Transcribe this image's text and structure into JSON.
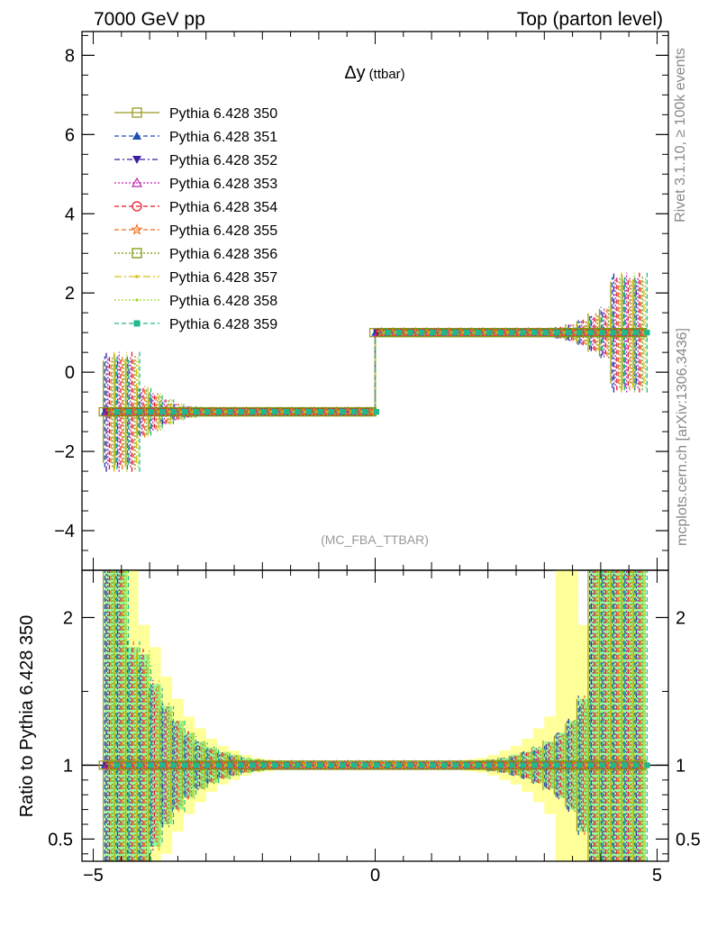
{
  "header": {
    "left": "7000 GeV pp",
    "right": "Top (parton level)"
  },
  "side_labels": {
    "rivet": "Rivet 3.1.10, ≥ 100k events",
    "mcplots": "mcplots.cern.ch [arXiv:1306.3436]"
  },
  "chart_data": [
    {
      "type": "line",
      "title": "Δy (ttbar)",
      "title_main": "Δy",
      "title_sub": "(ttbar)",
      "annotation": "(MC_FBA_TTBAR)",
      "xlim": [
        -5.2,
        5.2
      ],
      "ylim": [
        -5.0,
        8.6
      ],
      "yticks": [
        -4,
        -2,
        0,
        2,
        4,
        6,
        8
      ],
      "xticks": [
        -5,
        0,
        5
      ],
      "legend_position": "top-left",
      "bin_edges": [
        -4.8,
        -4.6,
        -4.4,
        -4.2,
        -4.0,
        -3.8,
        -3.6,
        -3.4,
        -3.2,
        -3.0,
        -2.8,
        -2.6,
        -2.4,
        -2.2,
        -2.0,
        -1.8,
        -1.6,
        -1.4,
        -1.2,
        -1.0,
        -0.8,
        -0.6,
        -0.4,
        -0.2,
        0.0,
        0.2,
        0.4,
        0.6,
        0.8,
        1.0,
        1.2,
        1.4,
        1.6,
        1.8,
        2.0,
        2.2,
        2.4,
        2.6,
        2.8,
        3.0,
        3.2,
        3.4,
        3.6,
        3.8,
        4.0,
        4.2,
        4.4,
        4.6,
        4.8
      ],
      "reference_values": {
        "negative_dy": -1.0,
        "positive_dy": 1.0
      },
      "error_half_widths": [
        1.4,
        1.4,
        1.4,
        0.6,
        0.45,
        0.3,
        0.2,
        0.14,
        0.1,
        0.07,
        0.05,
        0.04,
        0.03,
        0.02,
        0.02,
        0.01,
        0.01,
        0.01,
        0.01,
        0.01,
        0.01,
        0.01,
        0.01,
        0.01,
        0.01,
        0.01,
        0.01,
        0.01,
        0.01,
        0.01,
        0.01,
        0.01,
        0.01,
        0.02,
        0.02,
        0.03,
        0.04,
        0.05,
        0.07,
        0.1,
        0.14,
        0.2,
        0.3,
        0.45,
        0.6,
        1.4,
        1.4,
        1.4
      ],
      "series": [
        {
          "name": "Pythia 6.428 350",
          "color": "#9a9a22",
          "dash": "",
          "marker": "open-square"
        },
        {
          "name": "Pythia 6.428 351",
          "color": "#1e4fb0",
          "dash": "5,3",
          "marker": "filled-triangle-up"
        },
        {
          "name": "Pythia 6.428 352",
          "color": "#3b1fa0",
          "dash": "6,3,2,3",
          "marker": "filled-triangle-down"
        },
        {
          "name": "Pythia 6.428 353",
          "color": "#c020b0",
          "dash": "2,2",
          "marker": "open-triangle-up"
        },
        {
          "name": "Pythia 6.428 354",
          "color": "#e01828",
          "dash": "5,3",
          "marker": "open-circle"
        },
        {
          "name": "Pythia 6.428 355",
          "color": "#f07020",
          "dash": "5,3",
          "marker": "open-star"
        },
        {
          "name": "Pythia 6.428 356",
          "color": "#7a9a10",
          "dash": "2,2",
          "marker": "open-square"
        },
        {
          "name": "Pythia 6.428 357",
          "color": "#d8c010",
          "dash": "8,3,2,3",
          "marker": "small-dot"
        },
        {
          "name": "Pythia 6.428 358",
          "color": "#a8d830",
          "dash": "2,2",
          "marker": "small-dot"
        },
        {
          "name": "Pythia 6.428 359",
          "color": "#20b890",
          "dash": "5,3",
          "marker": "filled-square"
        }
      ]
    },
    {
      "type": "line",
      "ylabel": "Ratio to Pythia 6.428 350",
      "xlim": [
        -5.2,
        5.2
      ],
      "ylim": [
        0.35,
        2.32
      ],
      "yticks": [
        0.5,
        1,
        2
      ],
      "ytick_labels": [
        "0.5",
        "1",
        "2"
      ],
      "xticks": [
        -5,
        0,
        5
      ],
      "xtick_labels": [
        "−5",
        "0",
        "5"
      ],
      "reference_line": 1.0,
      "band_green_color": "#98f898",
      "band_yellow_color": "#ffff99",
      "band_green_half_widths": [
        3.0,
        3.0,
        0.8,
        0.75,
        0.55,
        0.4,
        0.3,
        0.22,
        0.16,
        0.12,
        0.09,
        0.07,
        0.05,
        0.04,
        0.03,
        0.02,
        0.02,
        0.01,
        0.01,
        0.01,
        0.01,
        0.01,
        0.01,
        0.01,
        0.01,
        0.01,
        0.01,
        0.01,
        0.01,
        0.01,
        0.01,
        0.02,
        0.02,
        0.03,
        0.04,
        0.05,
        0.07,
        0.09,
        0.12,
        0.16,
        0.22,
        0.3,
        0.45,
        3.0,
        3.0,
        3.0,
        3.0,
        3.0
      ],
      "band_yellow_half_widths": [
        3.0,
        3.0,
        3.0,
        0.95,
        0.8,
        0.6,
        0.45,
        0.33,
        0.25,
        0.18,
        0.13,
        0.1,
        0.07,
        0.05,
        0.04,
        0.03,
        0.02,
        0.02,
        0.02,
        0.02,
        0.02,
        0.02,
        0.02,
        0.02,
        0.02,
        0.02,
        0.02,
        0.02,
        0.02,
        0.02,
        0.02,
        0.03,
        0.04,
        0.05,
        0.07,
        0.1,
        0.13,
        0.18,
        0.25,
        0.33,
        3.0,
        3.0,
        0.95,
        0.9,
        0.85,
        3.0,
        3.0,
        3.0
      ]
    }
  ]
}
